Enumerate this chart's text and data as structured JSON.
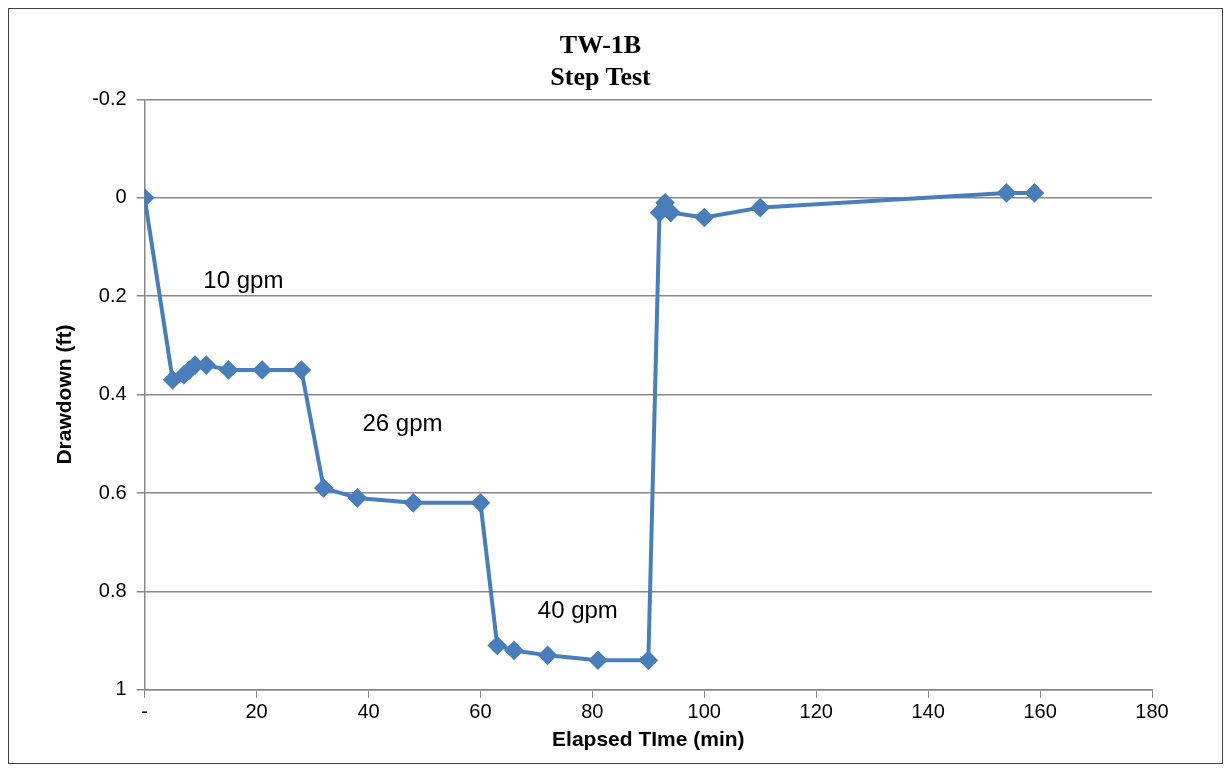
{
  "chart_data": {
    "type": "line",
    "title": "TW-1B",
    "subtitle": "Step Test",
    "xlabel": "Elapsed TIme (min)",
    "ylabel": "Drawdown (ft)",
    "x": [
      0,
      5,
      7,
      8,
      9,
      11,
      15,
      21,
      28,
      32,
      38,
      48,
      60,
      63,
      66,
      72,
      81,
      90,
      92,
      93,
      94,
      100,
      110,
      154,
      159
    ],
    "series": [
      {
        "color": "#4a7ebb",
        "values": [
          0,
          0.37,
          0.36,
          0.35,
          0.34,
          0.34,
          0.35,
          0.35,
          0.35,
          0.59,
          0.61,
          0.62,
          0.62,
          0.91,
          0.92,
          0.93,
          0.94,
          0.94,
          0.03,
          0.01,
          0.03,
          0.04,
          0.02,
          -0.01,
          -0.01
        ]
      }
    ],
    "xlim": [
      0,
      180
    ],
    "xticks": [
      {
        "value": 0,
        "label": "-"
      },
      20,
      40,
      60,
      80,
      100,
      120,
      140,
      160,
      180
    ],
    "ylim": [
      1,
      -0.2
    ],
    "yticks": [
      -0.2,
      0,
      0.2,
      0.4,
      0.6,
      0.8,
      1
    ],
    "annotations": [
      "10 gpm",
      "26 gpm",
      "40 gpm"
    ],
    "grid": "y",
    "legend": false,
    "marker": "diamond",
    "line_style": "solid"
  }
}
